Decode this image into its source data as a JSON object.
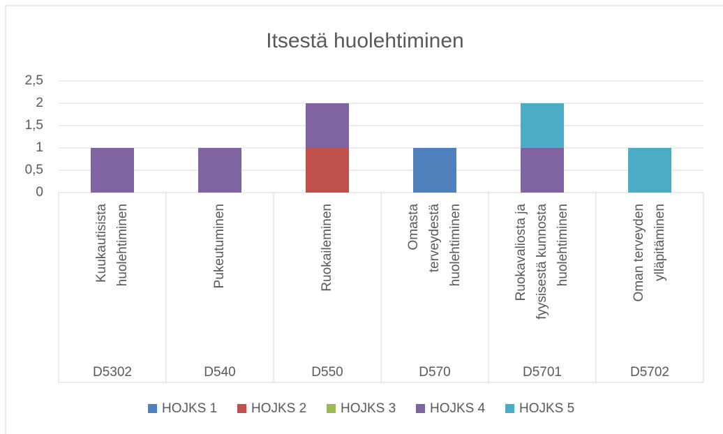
{
  "chart_data": {
    "type": "stacked_bar",
    "title": "Itsestä huolehtiminen",
    "categories": [
      [
        "Kuukautisista",
        "huolehtiminen"
      ],
      [
        "Pukeutuminen"
      ],
      [
        "Ruokaileminen"
      ],
      [
        "Omasta",
        "terveydestä",
        "huolehtiminen"
      ],
      [
        "Ruokavaliosta ja",
        "fyysisestä kunnosta",
        "huolehtiminen"
      ],
      [
        "Oman terveyden",
        "ylläpitäminen"
      ]
    ],
    "groups": [
      "D5302",
      "D540",
      "D550",
      "D570",
      "D5701",
      "D5702"
    ],
    "series": [
      {
        "name": "HOJKS 1",
        "color": "#4f81bd",
        "values": [
          0,
          0,
          0,
          1,
          0,
          0
        ]
      },
      {
        "name": "HOJKS 2",
        "color": "#c0504d",
        "values": [
          0,
          0,
          1,
          0,
          0,
          0
        ]
      },
      {
        "name": "HOJKS 3",
        "color": "#9bbb59",
        "values": [
          0,
          0,
          0,
          0,
          0,
          0
        ]
      },
      {
        "name": "HOJKS 4",
        "color": "#8064a2",
        "values": [
          1,
          1,
          1,
          0,
          1,
          0
        ]
      },
      {
        "name": "HOJKS 5",
        "color": "#4bacc6",
        "values": [
          0,
          0,
          0,
          0,
          1,
          1
        ]
      }
    ],
    "ylim": [
      0,
      2.5
    ],
    "yticks": [
      0,
      {
        "value": 0.5,
        "label": "0,5"
      },
      1,
      {
        "value": 1.5,
        "label": "1,5"
      },
      2,
      {
        "value": 2.5,
        "label": "2,5"
      }
    ],
    "grid": true,
    "legend": "bottom"
  }
}
